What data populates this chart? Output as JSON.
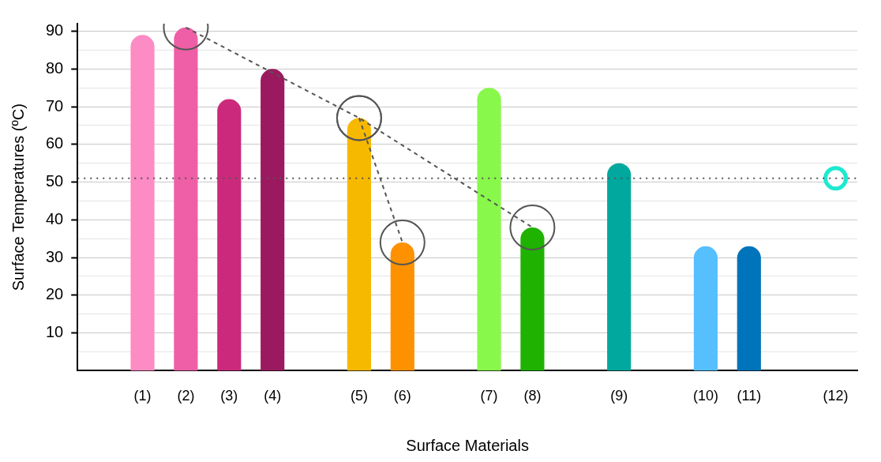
{
  "chart_data": {
    "type": "bar",
    "xlabel": "Surface Materials",
    "ylabel": "Surface Temperatures (ºC)",
    "categories": [
      null,
      "(1)",
      "(2)",
      "(3)",
      "(4)",
      null,
      "(5)",
      "(6)",
      null,
      "(7)",
      "(8)",
      null,
      "(9)",
      null,
      "(10)",
      "(11)",
      null,
      "(12)"
    ],
    "series": [
      {
        "colors": [
          "#cccccc",
          "#fd8bc4",
          "#ee5fa7",
          "#cb2a7c",
          "#9b1a5f",
          "#cccccc",
          "#f7b900",
          "#fe9100",
          "#cccccc",
          "#88f84a",
          "#1fb200",
          "#cccccc",
          "#00a89d",
          "#cccccc",
          "#56bffe",
          "#0074ba",
          "#cccccc",
          "#cccccc"
        ],
        "values": [
          null,
          89,
          91,
          72,
          80,
          null,
          67,
          34,
          null,
          75,
          38,
          null,
          55,
          null,
          33,
          33,
          null,
          null
        ]
      },
      {
        "type": "line",
        "color": "#555555",
        "line_style": "dashed",
        "marker": "circle",
        "values": [
          null,
          null,
          91,
          null,
          null,
          null,
          67,
          null,
          null,
          null,
          38,
          null,
          null,
          null,
          null,
          null,
          null,
          null
        ]
      },
      {
        "type": "line",
        "color": "#555555",
        "line_style": "dashed",
        "marker": "circle",
        "values": [
          null,
          null,
          null,
          null,
          null,
          null,
          67,
          34,
          null,
          null,
          null,
          null,
          null,
          null,
          null,
          null,
          null,
          null
        ]
      },
      {
        "type": "scatter",
        "color": "#1de9d0",
        "marker": "circle",
        "values": [
          null,
          null,
          null,
          null,
          null,
          null,
          null,
          null,
          null,
          null,
          null,
          null,
          null,
          null,
          null,
          null,
          null,
          51
        ]
      }
    ],
    "ylim": [
      0,
      92
    ],
    "yticks": [
      {
        "value": 5,
        "label": null
      },
      10,
      {
        "value": 15,
        "label": null
      },
      20,
      {
        "value": 25,
        "label": null
      },
      30,
      {
        "value": 35,
        "label": null
      },
      40,
      {
        "value": 45,
        "label": null
      },
      50,
      {
        "value": 55,
        "label": null
      },
      60,
      {
        "value": 65,
        "label": null
      },
      70,
      {
        "value": 75,
        "label": null
      },
      80,
      {
        "value": 85,
        "label": null
      },
      90
    ],
    "grid": "y",
    "legend": false,
    "ref_lines": [
      {
        "axis": "y",
        "value": 51,
        "color": "#555555",
        "line_style": "dotted"
      }
    ]
  }
}
